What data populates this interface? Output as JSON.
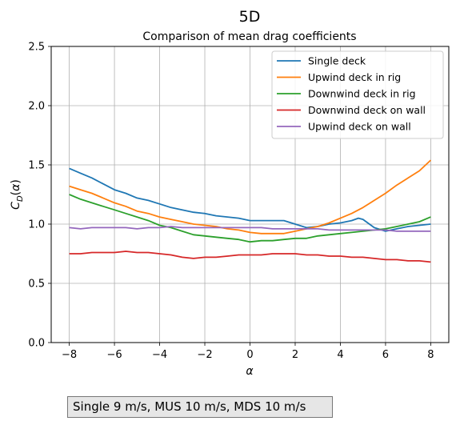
{
  "figure": {
    "suptitle": "5D",
    "caption": "Single 9 m/s, MUS 10 m/s, MDS 10 m/s"
  },
  "chart_data": {
    "type": "line",
    "title": "Comparison of mean drag coefficients",
    "xlabel": "α",
    "ylabel": "C_D(α)",
    "xlim": [
      -8.8,
      8.8
    ],
    "ylim": [
      0.0,
      2.5
    ],
    "xticks": [
      -8,
      -6,
      -4,
      -2,
      0,
      2,
      4,
      6,
      8
    ],
    "xtick_labels": [
      "−8",
      "−6",
      "−4",
      "−2",
      "0",
      "2",
      "4",
      "6",
      "8"
    ],
    "yticks": [
      0.0,
      0.5,
      1.0,
      1.5,
      2.0,
      2.5
    ],
    "ytick_labels": [
      "0.0",
      "0.5",
      "1.0",
      "1.5",
      "2.0",
      "2.5"
    ],
    "grid": true,
    "legend_position": "top-right",
    "series": [
      {
        "name": "Single deck",
        "color": "#1f77b4",
        "points": [
          [
            -8,
            1.47
          ],
          [
            -7.5,
            1.43
          ],
          [
            -7,
            1.39
          ],
          [
            -6.5,
            1.34
          ],
          [
            -6,
            1.29
          ],
          [
            -5.5,
            1.26
          ],
          [
            -5,
            1.22
          ],
          [
            -4.5,
            1.2
          ],
          [
            -4,
            1.17
          ],
          [
            -3.5,
            1.14
          ],
          [
            -3,
            1.12
          ],
          [
            -2.5,
            1.1
          ],
          [
            -2,
            1.09
          ],
          [
            -1.5,
            1.07
          ],
          [
            -1,
            1.06
          ],
          [
            -0.5,
            1.05
          ],
          [
            0,
            1.03
          ],
          [
            0.5,
            1.03
          ],
          [
            1,
            1.03
          ],
          [
            1.5,
            1.03
          ],
          [
            2,
            1.0
          ],
          [
            2.5,
            0.97
          ],
          [
            3,
            0.98
          ],
          [
            3.5,
            1.0
          ],
          [
            4,
            1.01
          ],
          [
            4.5,
            1.03
          ],
          [
            4.8,
            1.05
          ],
          [
            5,
            1.04
          ],
          [
            5.5,
            0.97
          ],
          [
            6,
            0.94
          ],
          [
            6.5,
            0.96
          ],
          [
            7,
            0.98
          ],
          [
            7.5,
            0.99
          ],
          [
            8,
            1.0
          ]
        ]
      },
      {
        "name": "Upwind deck in rig",
        "color": "#ff7f0e",
        "points": [
          [
            -8,
            1.32
          ],
          [
            -7.5,
            1.29
          ],
          [
            -7,
            1.26
          ],
          [
            -6.5,
            1.22
          ],
          [
            -6,
            1.18
          ],
          [
            -5.5,
            1.15
          ],
          [
            -5,
            1.11
          ],
          [
            -4.5,
            1.09
          ],
          [
            -4,
            1.06
          ],
          [
            -3.5,
            1.04
          ],
          [
            -3,
            1.02
          ],
          [
            -2.5,
            1.0
          ],
          [
            -2,
            0.99
          ],
          [
            -1.5,
            0.98
          ],
          [
            -1,
            0.96
          ],
          [
            -0.5,
            0.95
          ],
          [
            0,
            0.93
          ],
          [
            0.5,
            0.92
          ],
          [
            1,
            0.92
          ],
          [
            1.5,
            0.92
          ],
          [
            2,
            0.94
          ],
          [
            2.5,
            0.96
          ],
          [
            3,
            0.98
          ],
          [
            3.5,
            1.01
          ],
          [
            4,
            1.05
          ],
          [
            4.5,
            1.09
          ],
          [
            5,
            1.14
          ],
          [
            5.5,
            1.2
          ],
          [
            6,
            1.26
          ],
          [
            6.5,
            1.33
          ],
          [
            7,
            1.39
          ],
          [
            7.5,
            1.45
          ],
          [
            8,
            1.54
          ]
        ]
      },
      {
        "name": "Downwind deck in rig",
        "color": "#2ca02c",
        "points": [
          [
            -8,
            1.25
          ],
          [
            -7.5,
            1.21
          ],
          [
            -7,
            1.18
          ],
          [
            -6.5,
            1.15
          ],
          [
            -6,
            1.12
          ],
          [
            -5.5,
            1.09
          ],
          [
            -5,
            1.06
          ],
          [
            -4.5,
            1.03
          ],
          [
            -4,
            0.99
          ],
          [
            -3.5,
            0.97
          ],
          [
            -3,
            0.94
          ],
          [
            -2.5,
            0.91
          ],
          [
            -2,
            0.9
          ],
          [
            -1.5,
            0.89
          ],
          [
            -1,
            0.88
          ],
          [
            -0.5,
            0.87
          ],
          [
            0,
            0.85
          ],
          [
            0.5,
            0.86
          ],
          [
            1,
            0.86
          ],
          [
            1.5,
            0.87
          ],
          [
            2,
            0.88
          ],
          [
            2.5,
            0.88
          ],
          [
            3,
            0.9
          ],
          [
            3.5,
            0.91
          ],
          [
            4,
            0.92
          ],
          [
            4.5,
            0.93
          ],
          [
            5,
            0.94
          ],
          [
            5.5,
            0.95
          ],
          [
            6,
            0.96
          ],
          [
            6.5,
            0.98
          ],
          [
            7,
            1.0
          ],
          [
            7.5,
            1.02
          ],
          [
            8,
            1.06
          ]
        ]
      },
      {
        "name": "Downwind deck on wall",
        "color": "#d62728",
        "points": [
          [
            -8,
            0.75
          ],
          [
            -7.5,
            0.75
          ],
          [
            -7,
            0.76
          ],
          [
            -6.5,
            0.76
          ],
          [
            -6,
            0.76
          ],
          [
            -5.5,
            0.77
          ],
          [
            -5,
            0.76
          ],
          [
            -4.5,
            0.76
          ],
          [
            -4,
            0.75
          ],
          [
            -3.5,
            0.74
          ],
          [
            -3,
            0.72
          ],
          [
            -2.5,
            0.71
          ],
          [
            -2,
            0.72
          ],
          [
            -1.5,
            0.72
          ],
          [
            -1,
            0.73
          ],
          [
            -0.5,
            0.74
          ],
          [
            0,
            0.74
          ],
          [
            0.5,
            0.74
          ],
          [
            1,
            0.75
          ],
          [
            1.5,
            0.75
          ],
          [
            2,
            0.75
          ],
          [
            2.5,
            0.74
          ],
          [
            3,
            0.74
          ],
          [
            3.5,
            0.73
          ],
          [
            4,
            0.73
          ],
          [
            4.5,
            0.72
          ],
          [
            5,
            0.72
          ],
          [
            5.5,
            0.71
          ],
          [
            6,
            0.7
          ],
          [
            6.5,
            0.7
          ],
          [
            7,
            0.69
          ],
          [
            7.5,
            0.69
          ],
          [
            8,
            0.68
          ]
        ]
      },
      {
        "name": "Upwind deck on wall",
        "color": "#9467bd",
        "points": [
          [
            -8,
            0.97
          ],
          [
            -7.5,
            0.96
          ],
          [
            -7,
            0.97
          ],
          [
            -6.5,
            0.97
          ],
          [
            -6,
            0.97
          ],
          [
            -5.5,
            0.97
          ],
          [
            -5,
            0.96
          ],
          [
            -4.5,
            0.97
          ],
          [
            -4,
            0.97
          ],
          [
            -3.5,
            0.98
          ],
          [
            -3,
            0.97
          ],
          [
            -2.5,
            0.97
          ],
          [
            -2,
            0.97
          ],
          [
            -1.5,
            0.97
          ],
          [
            -1,
            0.97
          ],
          [
            -0.5,
            0.97
          ],
          [
            0,
            0.97
          ],
          [
            0.5,
            0.97
          ],
          [
            1,
            0.96
          ],
          [
            1.5,
            0.96
          ],
          [
            2,
            0.96
          ],
          [
            2.5,
            0.96
          ],
          [
            3,
            0.96
          ],
          [
            3.5,
            0.95
          ],
          [
            4,
            0.95
          ],
          [
            4.5,
            0.95
          ],
          [
            5,
            0.95
          ],
          [
            5.5,
            0.95
          ],
          [
            6,
            0.95
          ],
          [
            6.5,
            0.94
          ],
          [
            7,
            0.94
          ],
          [
            7.5,
            0.94
          ],
          [
            8,
            0.94
          ]
        ]
      }
    ]
  }
}
